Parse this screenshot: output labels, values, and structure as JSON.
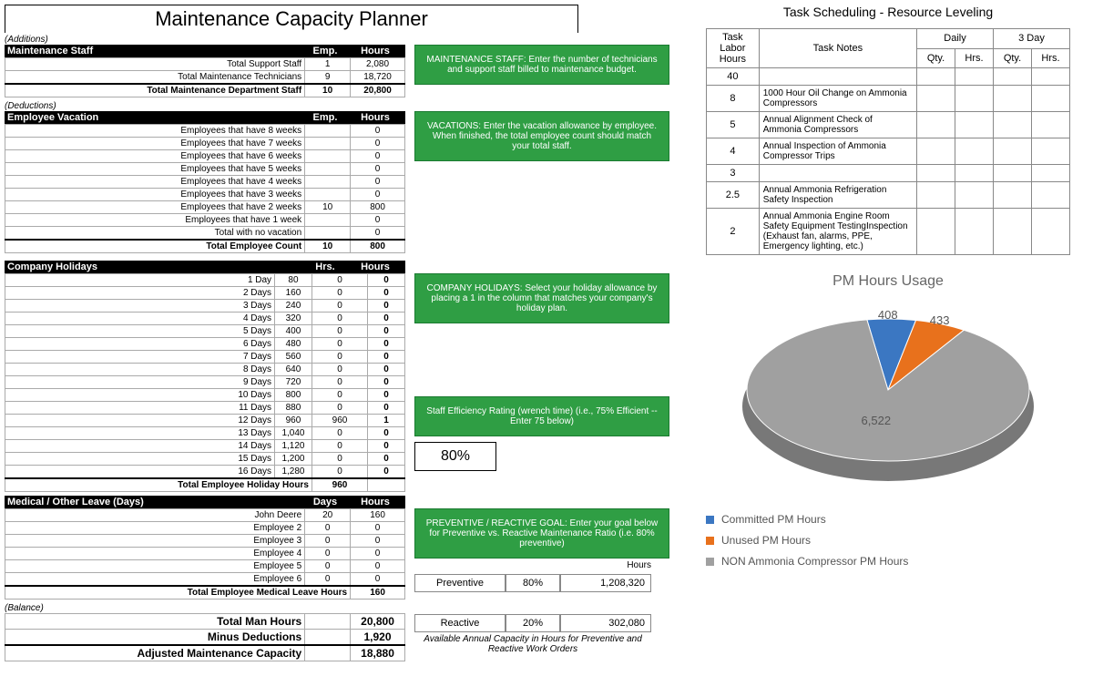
{
  "title": "Maintenance Capacity Planner",
  "additions_label": "(Additions)",
  "maint_staff": {
    "header": "Maintenance Staff",
    "col1": "Emp.",
    "col2": "Hours",
    "rows": [
      {
        "label": "Total Support Staff",
        "emp": "1",
        "hours": "2,080"
      },
      {
        "label": "Total Maintenance Technicians",
        "emp": "9",
        "hours": "18,720"
      }
    ],
    "total_label": "Total Maintenance Department Staff",
    "total_emp": "10",
    "total_hours": "20,800",
    "help": "MAINTENANCE STAFF: Enter the number of technicians  and support staff billed to maintenance budget."
  },
  "deductions_label": "(Deductions)",
  "vacation": {
    "header": "Employee Vacation",
    "col1": "Emp.",
    "col2": "Hours",
    "rows": [
      {
        "label": "Employees that have 8 weeks",
        "emp": "",
        "hours": "0"
      },
      {
        "label": "Employees that have 7 weeks",
        "emp": "",
        "hours": "0"
      },
      {
        "label": "Employees that have 6 weeks",
        "emp": "",
        "hours": "0"
      },
      {
        "label": "Employees that have 5 weeks",
        "emp": "",
        "hours": "0"
      },
      {
        "label": "Employees that have 4 weeks",
        "emp": "",
        "hours": "0"
      },
      {
        "label": "Employees that have 3 weeks",
        "emp": "",
        "hours": "0"
      },
      {
        "label": "Employees that have 2 weeks",
        "emp": "10",
        "hours": "800"
      },
      {
        "label": "Employees that have 1 week",
        "emp": "",
        "hours": "0"
      },
      {
        "label": "Total with no vacation",
        "emp": "",
        "hours": "0"
      }
    ],
    "total_label": "Total  Employee Count",
    "total_emp": "10",
    "total_hours": "800",
    "help": "VACATIONS:  Enter the vacation allowance by employee.  When finished, the total employee count should match your total staff."
  },
  "holidays": {
    "header": "Company Holidays",
    "col1": "Hrs.",
    "col2": "Hours",
    "rows": [
      {
        "label": "1 Day",
        "hrs": "80",
        "hours": "0",
        "sel": "0"
      },
      {
        "label": "2 Days",
        "hrs": "160",
        "hours": "0",
        "sel": "0"
      },
      {
        "label": "3 Days",
        "hrs": "240",
        "hours": "0",
        "sel": "0"
      },
      {
        "label": "4 Days",
        "hrs": "320",
        "hours": "0",
        "sel": "0"
      },
      {
        "label": "5 Days",
        "hrs": "400",
        "hours": "0",
        "sel": "0"
      },
      {
        "label": "6 Days",
        "hrs": "480",
        "hours": "0",
        "sel": "0"
      },
      {
        "label": "7 Days",
        "hrs": "560",
        "hours": "0",
        "sel": "0"
      },
      {
        "label": "8 Days",
        "hrs": "640",
        "hours": "0",
        "sel": "0"
      },
      {
        "label": "9 Days",
        "hrs": "720",
        "hours": "0",
        "sel": "0"
      },
      {
        "label": "10 Days",
        "hrs": "800",
        "hours": "0",
        "sel": "0"
      },
      {
        "label": "11 Days",
        "hrs": "880",
        "hours": "0",
        "sel": "0"
      },
      {
        "label": "12 Days",
        "hrs": "960",
        "hours": "960",
        "sel": "1"
      },
      {
        "label": "13 Days",
        "hrs": "1,040",
        "hours": "0",
        "sel": "0"
      },
      {
        "label": "14 Days",
        "hrs": "1,120",
        "hours": "0",
        "sel": "0"
      },
      {
        "label": "15 Days",
        "hrs": "1,200",
        "hours": "0",
        "sel": "0"
      },
      {
        "label": "16 Days",
        "hrs": "1,280",
        "hours": "0",
        "sel": "0"
      }
    ],
    "total_label": "Total  Employee Holiday Hours",
    "total_hours": "960",
    "help": "COMPANY HOLIDAYS:   Select your holiday allowance by placing a 1 in the column that matches your company's holiday plan.",
    "eff_help": "Staff Efficiency Rating (wrench time) (i.e., 75% Efficient -- Enter 75 below)",
    "eff_value": "80%"
  },
  "medical": {
    "header": "Medical / Other Leave (Days)",
    "col1": "Days",
    "col2": "Hours",
    "rows": [
      {
        "label": "John Deere",
        "days": "20",
        "hours": "160"
      },
      {
        "label": "Employee 2",
        "days": "0",
        "hours": "0"
      },
      {
        "label": "Employee 3",
        "days": "0",
        "hours": "0"
      },
      {
        "label": "Employee 4",
        "days": "0",
        "hours": "0"
      },
      {
        "label": "Employee 5",
        "days": "0",
        "hours": "0"
      },
      {
        "label": "Employee 6",
        "days": "0",
        "hours": "0"
      }
    ],
    "total_label": "Total  Employee Medical Leave Hours",
    "total_hours": "160",
    "help": "PREVENTIVE / REACTIVE GOAL:  Enter your goal below for Preventive vs. Reactive Maintenance Ratio (i.e. 80% preventive)",
    "hours_label": "Hours",
    "prev_label": "Preventive",
    "prev_pct": "80%",
    "prev_hours": "1,208,320",
    "react_label": "Reactive",
    "react_pct": "20%",
    "react_hours": "302,080",
    "note": "Available Annual Capacity in Hours for Preventive and Reactive Work Orders"
  },
  "balance": {
    "label": "(Balance)",
    "rows": [
      {
        "label": "Total Man Hours",
        "val": "20,800"
      },
      {
        "label": "Minus Deductions",
        "val": "1,920"
      },
      {
        "label": "Adjusted Maintenance Capacity",
        "val": "18,880"
      }
    ]
  },
  "scheduling": {
    "title": "Task Scheduling - Resource Leveling",
    "h_task": "Task Labor Hours",
    "h_notes": "Task Notes",
    "h_daily": "Daily",
    "h_3day": "3 Day",
    "h_qty": "Qty.",
    "h_hrs": "Hrs.",
    "rows": [
      {
        "hrs": "40",
        "notes": ""
      },
      {
        "hrs": "8",
        "notes": "1000 Hour Oil Change on Ammonia Compressors"
      },
      {
        "hrs": "5",
        "notes": "Annual Alignment Check of Ammonia Compressors"
      },
      {
        "hrs": "4",
        "notes": "Annual Inspection of Ammonia Compressor Trips"
      },
      {
        "hrs": "3",
        "notes": ""
      },
      {
        "hrs": "2.5",
        "notes": "Annual Ammonia Refrigeration Safety Inspection"
      },
      {
        "hrs": "2",
        "notes": "Annual Ammonia Engine Room Safety Equipment TestingInspection (Exhaust fan, alarms, PPE, Emergency lighting, etc.)"
      }
    ]
  },
  "pie": {
    "title": "PM Hours Usage",
    "slices": [
      {
        "label": "Committed PM Hours",
        "value": 408,
        "display": "408",
        "color": "#3b77c2"
      },
      {
        "label": "Unused PM Hours",
        "value": 433,
        "display": "433",
        "color": "#e8711c"
      },
      {
        "label": "NON Ammonia Compressor PM Hours",
        "value": 6522,
        "display": "6,522",
        "color": "#a0a0a0"
      }
    ],
    "background": "#ffffff"
  }
}
